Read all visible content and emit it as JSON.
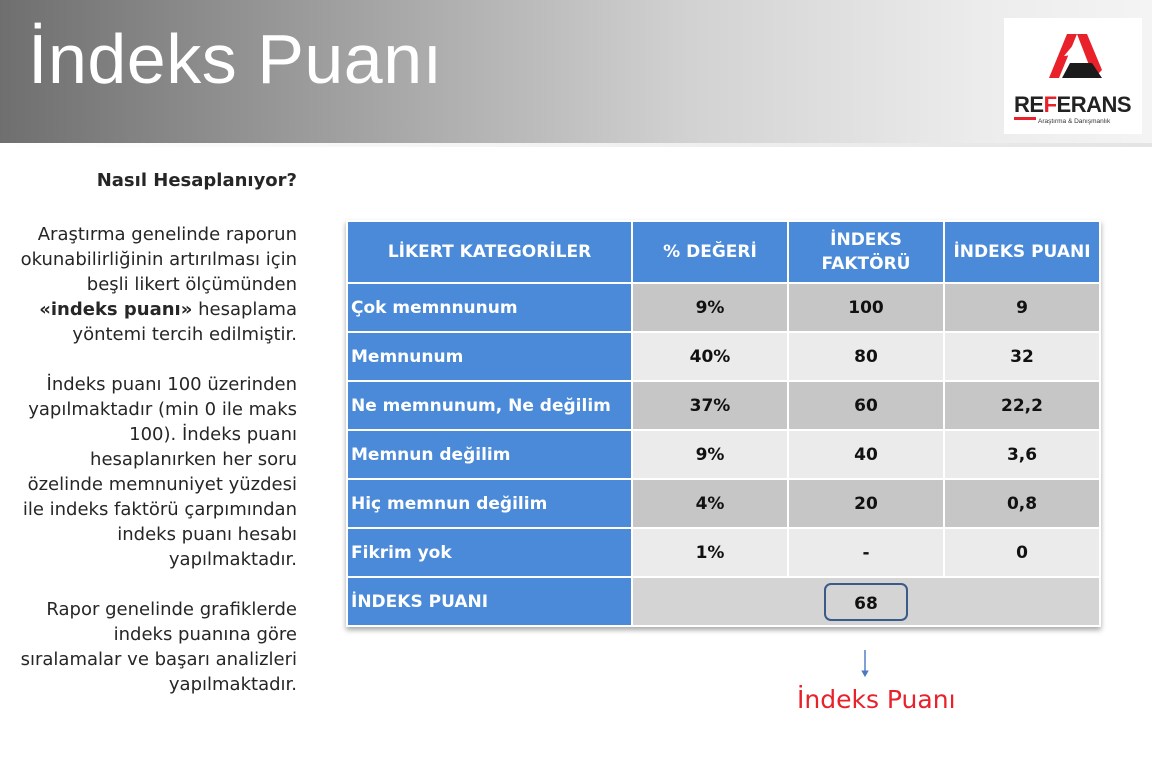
{
  "header": {
    "title": "İndeks Puanı"
  },
  "logo": {
    "word_first": "RE",
    "word_red": "F",
    "word_rest": "ERANS",
    "tagline": "Araştırma & Danışmanlık"
  },
  "left": {
    "heading": "Nasıl Hesaplanıyor?",
    "para1_pre": "Araştırma genelinde raporun okunabilirliğinin artırılması için beşli likert ölçümünden ",
    "para1_bold": "«indeks puanı»",
    "para1_post": " hesaplama yöntemi tercih edilmiştir.",
    "para2": "İndeks puanı 100 üzerinden yapılmaktadır (min 0 ile maks 100). İndeks puanı hesaplanırken her soru özelinde memnuniyet yüzdesi ile indeks faktörü çarpımından indeks puanı hesabı yapılmaktadır.",
    "para3": "Rapor genelinde grafiklerde indeks puanına göre sıralamalar ve başarı analizleri yapılmaktadır."
  },
  "table": {
    "headers": [
      "LİKERT KATEGORİLER",
      "% DEĞERİ",
      "İNDEKS FAKTÖRÜ",
      "İNDEKS PUANI"
    ],
    "rows": [
      {
        "category": "Çok memnnunum",
        "percent": "9%",
        "factor": "100",
        "score": "9"
      },
      {
        "category": "Memnunum",
        "percent": "40%",
        "factor": "80",
        "score": "32"
      },
      {
        "category": "Ne memnunum, Ne değilim",
        "percent": "37%",
        "factor": "60",
        "score": "22,2"
      },
      {
        "category": "Memnun değilim",
        "percent": "9%",
        "factor": "40",
        "score": "3,6"
      },
      {
        "category": "Hiç memnun değilim",
        "percent": "4%",
        "factor": "20",
        "score": "0,8"
      },
      {
        "category": "Fikrim yok",
        "percent": "1%",
        "factor": "-",
        "score": "0"
      }
    ],
    "total_label": "İNDEKS PUANI",
    "total_value": "68"
  },
  "result_label": "İndeks Puanı",
  "colors": {
    "header_blue": "#4a8ad8",
    "accent_red": "#e8212b"
  }
}
